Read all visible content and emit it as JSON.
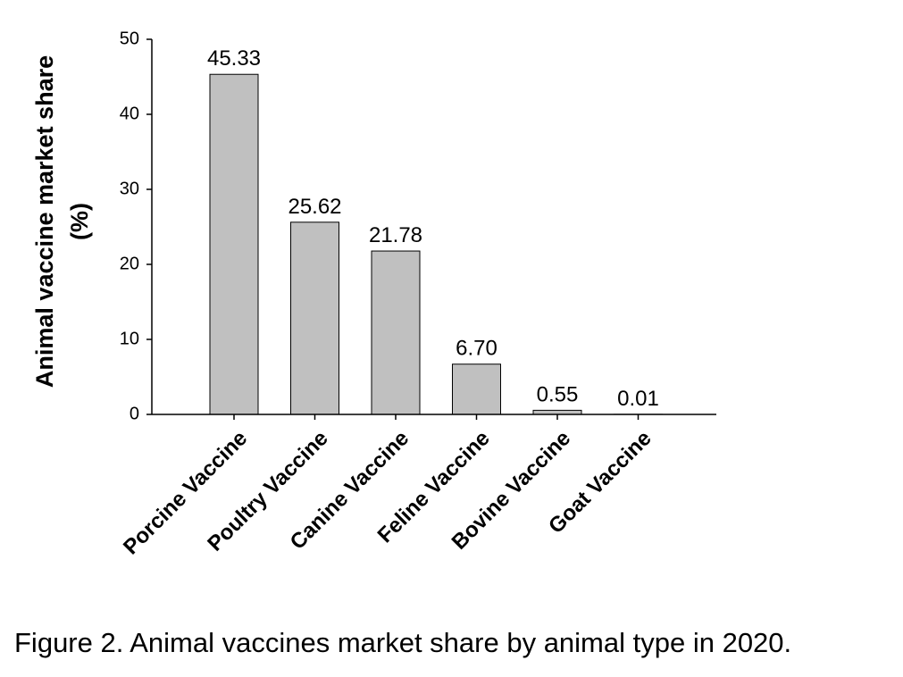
{
  "chart_data": {
    "type": "bar",
    "categories": [
      "Porcine Vaccine",
      "Poultry Vaccine",
      "Canine Vaccine",
      "Feline Vaccine",
      "Bovine Vaccine",
      "Goat Vaccine"
    ],
    "values": [
      45.33,
      25.62,
      21.78,
      6.7,
      0.55,
      0.01
    ],
    "data_labels": [
      "45.33",
      "25.62",
      "21.78",
      "6.70",
      "0.55",
      "0.01"
    ],
    "ylabel_lines": [
      "Animal vaccine market share",
      "(%)"
    ],
    "xlabel": "",
    "ylim": [
      0,
      50
    ],
    "yticks": [
      0,
      10,
      20,
      30,
      40,
      50
    ],
    "grid": false,
    "bar_color": "#c0c0c0",
    "bar_edge_color": "#000000"
  },
  "caption": "Figure 2. Animal vaccines market share by animal type in 2020."
}
